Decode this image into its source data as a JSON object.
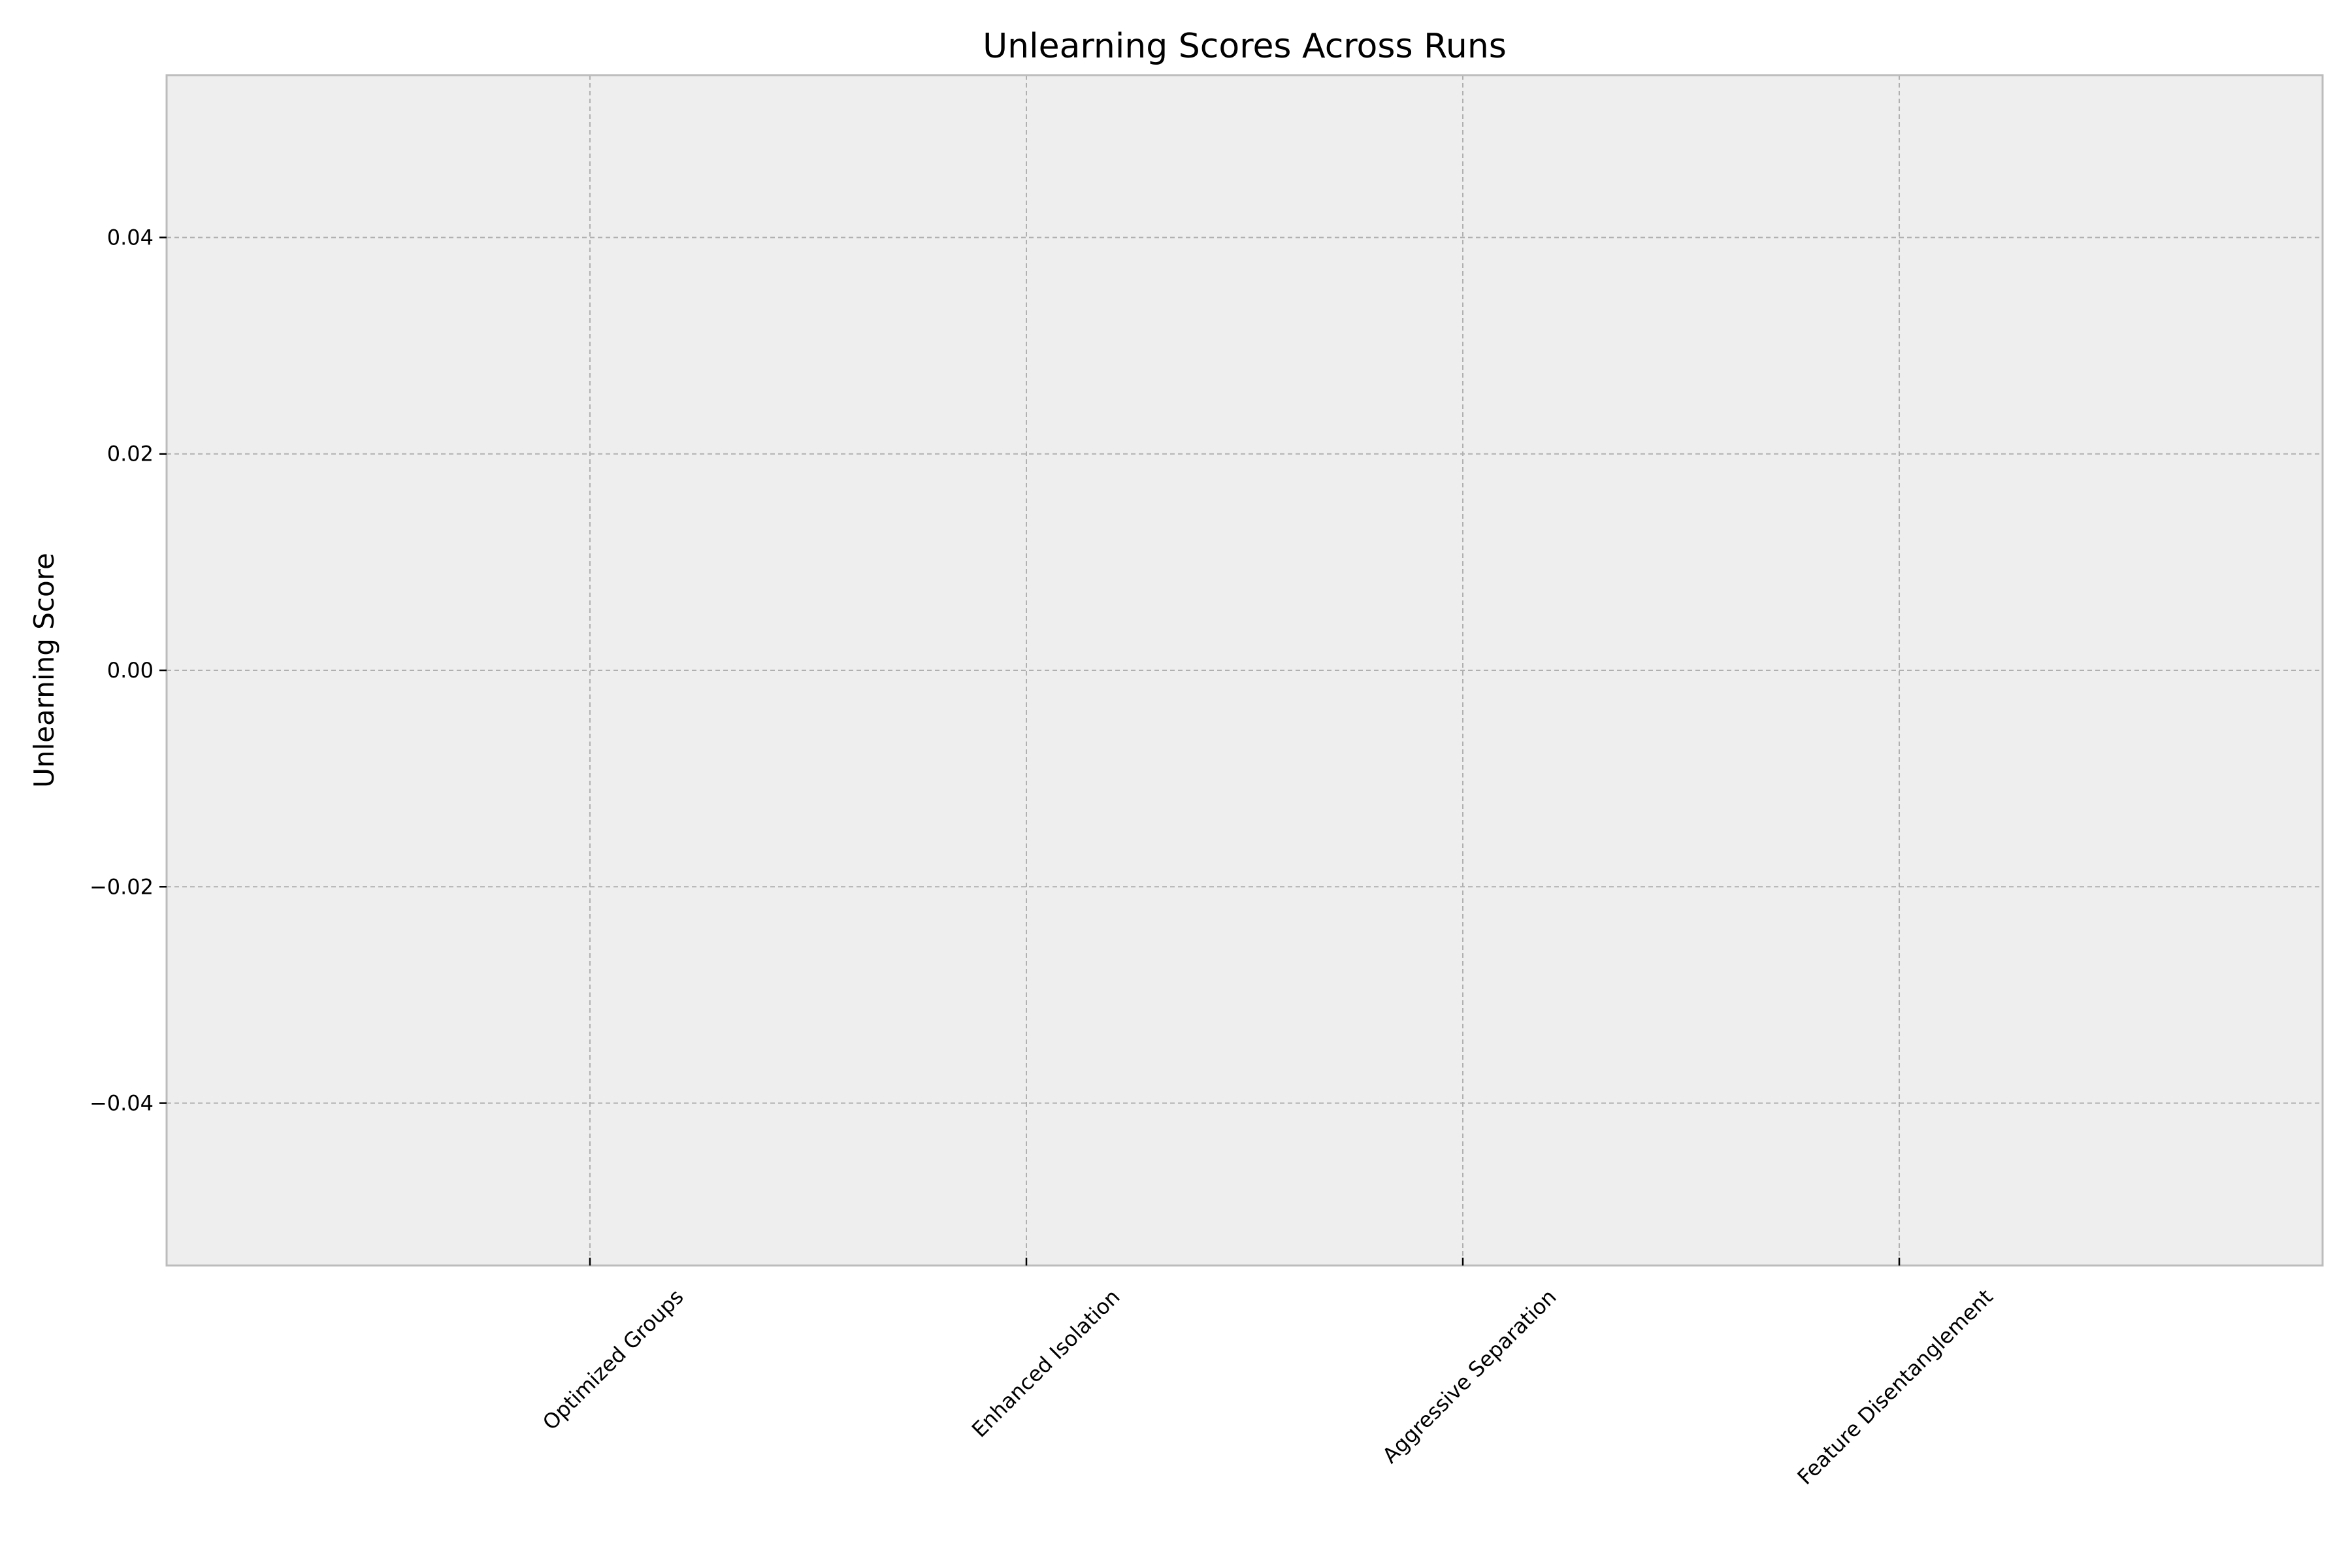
{
  "chart_data": {
    "type": "bar",
    "title": "Unlearning Scores Across Runs",
    "xlabel": "",
    "ylabel": "Unlearning Score",
    "categories": [
      "Optimized Groups",
      "Enhanced Isolation",
      "Aggressive Separation",
      "Feature Disentanglement"
    ],
    "values": [
      0,
      0,
      0,
      0
    ],
    "ylim": [
      -0.055,
      0.055
    ],
    "yticks": [
      -0.04,
      -0.02,
      0.0,
      0.02,
      0.04
    ],
    "ytick_labels": [
      "−0.04",
      "−0.02",
      "0.00",
      "0.02",
      "0.04"
    ],
    "grid": true,
    "colors": {
      "plot_background": "#eeeeee",
      "grid": "#b0b0b0",
      "spine": "#bcbcbc",
      "tick": "#000000"
    }
  }
}
